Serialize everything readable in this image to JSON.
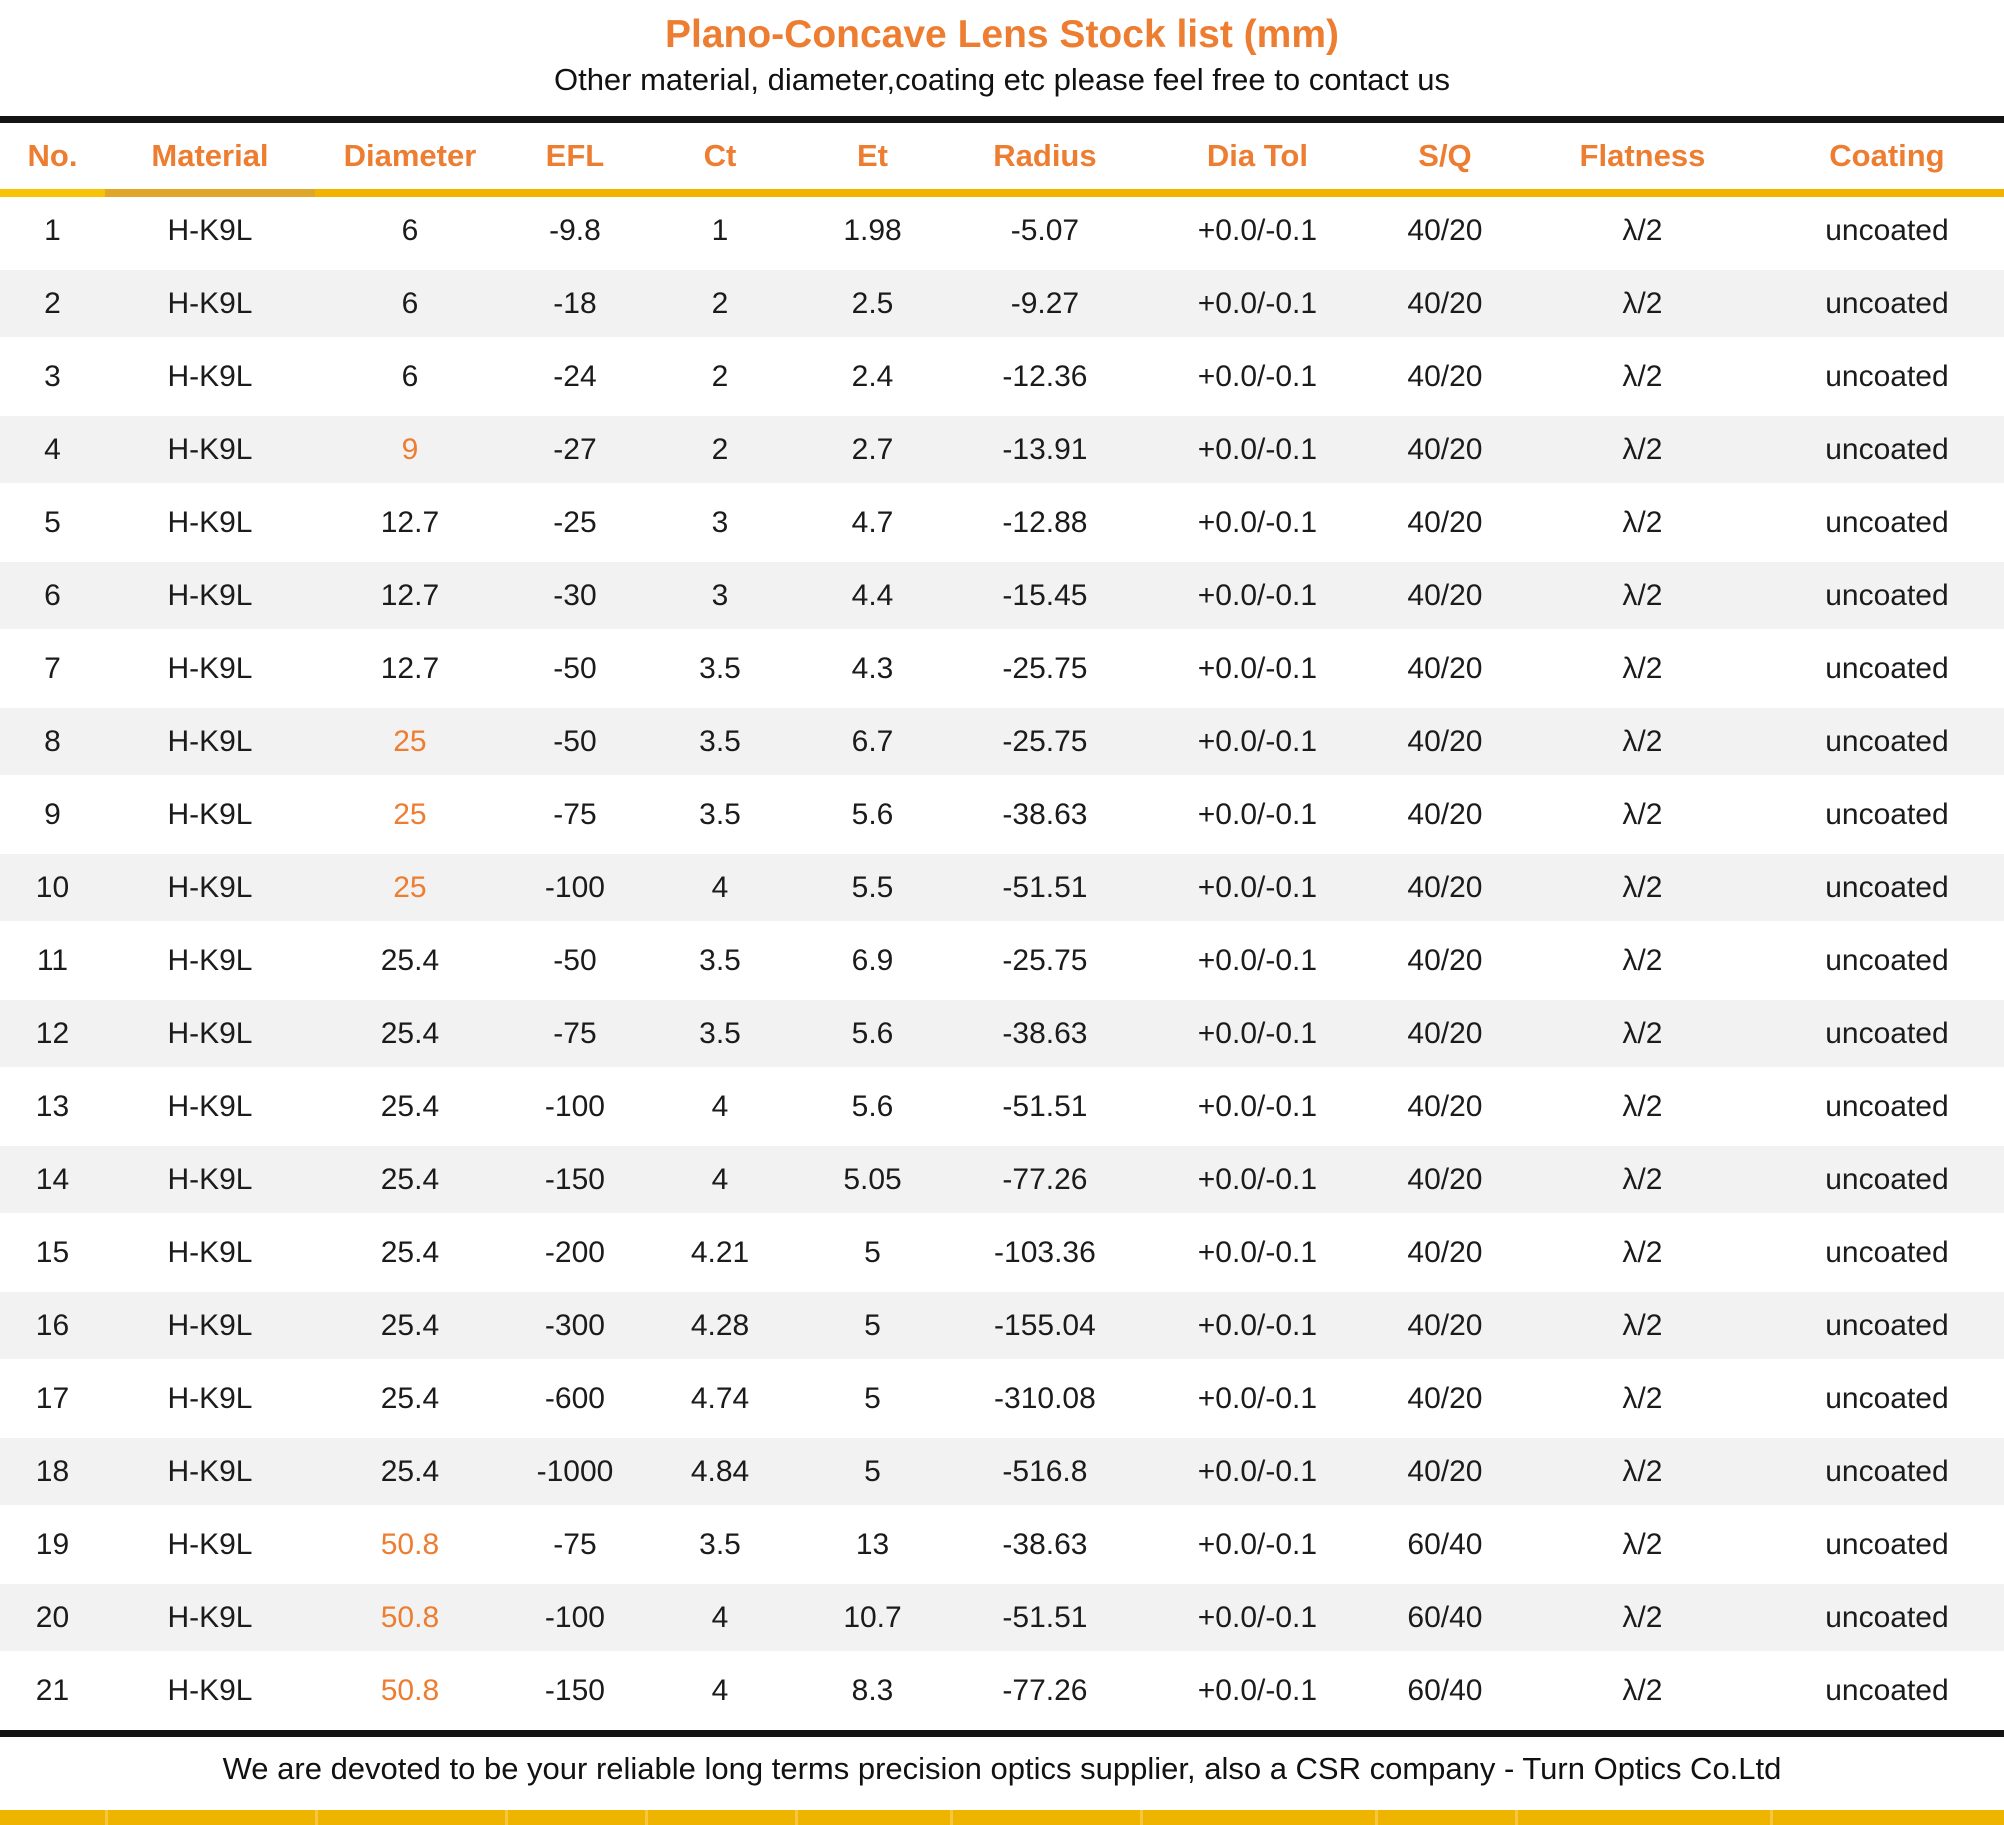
{
  "title": "Plano-Concave Lens Stock list (mm)",
  "subtitle": "Other material, diameter,coating etc please feel free to contact us",
  "footer": "We are devoted to be your reliable long terms precision optics supplier, also a CSR company - Turn Optics Co.Ltd",
  "colors": {
    "accent_orange": "#ED7D31",
    "gold_line": "#F2B300",
    "row_alt_gray": "#F2F2F2",
    "rule_black": "#141414"
  },
  "columns": [
    "No.",
    "Material",
    "Diameter",
    "EFL",
    "Ct",
    "Et",
    "Radius",
    "Dia Tol",
    "S/Q",
    "Flatness",
    "Coating"
  ],
  "rows": [
    {
      "no": "1",
      "material": "H-K9L",
      "diameter": "6",
      "diameter_orange": false,
      "efl": "-9.8",
      "ct": "1",
      "et": "1.98",
      "radius": "-5.07",
      "dia_tol": "+0.0/-0.1",
      "sq": "40/20",
      "flatness": "λ/2",
      "coating": "uncoated"
    },
    {
      "no": "2",
      "material": "H-K9L",
      "diameter": "6",
      "diameter_orange": false,
      "efl": "-18",
      "ct": "2",
      "et": "2.5",
      "radius": "-9.27",
      "dia_tol": "+0.0/-0.1",
      "sq": "40/20",
      "flatness": "λ/2",
      "coating": "uncoated"
    },
    {
      "no": "3",
      "material": "H-K9L",
      "diameter": "6",
      "diameter_orange": false,
      "efl": "-24",
      "ct": "2",
      "et": "2.4",
      "radius": "-12.36",
      "dia_tol": "+0.0/-0.1",
      "sq": "40/20",
      "flatness": "λ/2",
      "coating": "uncoated"
    },
    {
      "no": "4",
      "material": "H-K9L",
      "diameter": "9",
      "diameter_orange": true,
      "efl": "-27",
      "ct": "2",
      "et": "2.7",
      "radius": "-13.91",
      "dia_tol": "+0.0/-0.1",
      "sq": "40/20",
      "flatness": "λ/2",
      "coating": "uncoated"
    },
    {
      "no": "5",
      "material": "H-K9L",
      "diameter": "12.7",
      "diameter_orange": false,
      "efl": "-25",
      "ct": "3",
      "et": "4.7",
      "radius": "-12.88",
      "dia_tol": "+0.0/-0.1",
      "sq": "40/20",
      "flatness": "λ/2",
      "coating": "uncoated"
    },
    {
      "no": "6",
      "material": "H-K9L",
      "diameter": "12.7",
      "diameter_orange": false,
      "efl": "-30",
      "ct": "3",
      "et": "4.4",
      "radius": "-15.45",
      "dia_tol": "+0.0/-0.1",
      "sq": "40/20",
      "flatness": "λ/2",
      "coating": "uncoated"
    },
    {
      "no": "7",
      "material": "H-K9L",
      "diameter": "12.7",
      "diameter_orange": false,
      "efl": "-50",
      "ct": "3.5",
      "et": "4.3",
      "radius": "-25.75",
      "dia_tol": "+0.0/-0.1",
      "sq": "40/20",
      "flatness": "λ/2",
      "coating": "uncoated"
    },
    {
      "no": "8",
      "material": "H-K9L",
      "diameter": "25",
      "diameter_orange": true,
      "efl": "-50",
      "ct": "3.5",
      "et": "6.7",
      "radius": "-25.75",
      "dia_tol": "+0.0/-0.1",
      "sq": "40/20",
      "flatness": "λ/2",
      "coating": "uncoated"
    },
    {
      "no": "9",
      "material": "H-K9L",
      "diameter": "25",
      "diameter_orange": true,
      "efl": "-75",
      "ct": "3.5",
      "et": "5.6",
      "radius": "-38.63",
      "dia_tol": "+0.0/-0.1",
      "sq": "40/20",
      "flatness": "λ/2",
      "coating": "uncoated"
    },
    {
      "no": "10",
      "material": "H-K9L",
      "diameter": "25",
      "diameter_orange": true,
      "efl": "-100",
      "ct": "4",
      "et": "5.5",
      "radius": "-51.51",
      "dia_tol": "+0.0/-0.1",
      "sq": "40/20",
      "flatness": "λ/2",
      "coating": "uncoated"
    },
    {
      "no": "11",
      "material": "H-K9L",
      "diameter": "25.4",
      "diameter_orange": false,
      "efl": "-50",
      "ct": "3.5",
      "et": "6.9",
      "radius": "-25.75",
      "dia_tol": "+0.0/-0.1",
      "sq": "40/20",
      "flatness": "λ/2",
      "coating": "uncoated"
    },
    {
      "no": "12",
      "material": "H-K9L",
      "diameter": "25.4",
      "diameter_orange": false,
      "efl": "-75",
      "ct": "3.5",
      "et": "5.6",
      "radius": "-38.63",
      "dia_tol": "+0.0/-0.1",
      "sq": "40/20",
      "flatness": "λ/2",
      "coating": "uncoated"
    },
    {
      "no": "13",
      "material": "H-K9L",
      "diameter": "25.4",
      "diameter_orange": false,
      "efl": "-100",
      "ct": "4",
      "et": "5.6",
      "radius": "-51.51",
      "dia_tol": "+0.0/-0.1",
      "sq": "40/20",
      "flatness": "λ/2",
      "coating": "uncoated"
    },
    {
      "no": "14",
      "material": "H-K9L",
      "diameter": "25.4",
      "diameter_orange": false,
      "efl": "-150",
      "ct": "4",
      "et": "5.05",
      "radius": "-77.26",
      "dia_tol": "+0.0/-0.1",
      "sq": "40/20",
      "flatness": "λ/2",
      "coating": "uncoated"
    },
    {
      "no": "15",
      "material": "H-K9L",
      "diameter": "25.4",
      "diameter_orange": false,
      "efl": "-200",
      "ct": "4.21",
      "et": "5",
      "radius": "-103.36",
      "dia_tol": "+0.0/-0.1",
      "sq": "40/20",
      "flatness": "λ/2",
      "coating": "uncoated"
    },
    {
      "no": "16",
      "material": "H-K9L",
      "diameter": "25.4",
      "diameter_orange": false,
      "efl": "-300",
      "ct": "4.28",
      "et": "5",
      "radius": "-155.04",
      "dia_tol": "+0.0/-0.1",
      "sq": "40/20",
      "flatness": "λ/2",
      "coating": "uncoated"
    },
    {
      "no": "17",
      "material": "H-K9L",
      "diameter": "25.4",
      "diameter_orange": false,
      "efl": "-600",
      "ct": "4.74",
      "et": "5",
      "radius": "-310.08",
      "dia_tol": "+0.0/-0.1",
      "sq": "40/20",
      "flatness": "λ/2",
      "coating": "uncoated"
    },
    {
      "no": "18",
      "material": "H-K9L",
      "diameter": "25.4",
      "diameter_orange": false,
      "efl": "-1000",
      "ct": "4.84",
      "et": "5",
      "radius": "-516.8",
      "dia_tol": "+0.0/-0.1",
      "sq": "40/20",
      "flatness": "λ/2",
      "coating": "uncoated"
    },
    {
      "no": "19",
      "material": "H-K9L",
      "diameter": "50.8",
      "diameter_orange": true,
      "efl": "-75",
      "ct": "3.5",
      "et": "13",
      "radius": "-38.63",
      "dia_tol": "+0.0/-0.1",
      "sq": "60/40",
      "flatness": "λ/2",
      "coating": "uncoated"
    },
    {
      "no": "20",
      "material": "H-K9L",
      "diameter": "50.8",
      "diameter_orange": true,
      "efl": "-100",
      "ct": "4",
      "et": "10.7",
      "radius": "-51.51",
      "dia_tol": "+0.0/-0.1",
      "sq": "60/40",
      "flatness": "λ/2",
      "coating": "uncoated"
    },
    {
      "no": "21",
      "material": "H-K9L",
      "diameter": "50.8",
      "diameter_orange": true,
      "efl": "-150",
      "ct": "4",
      "et": "8.3",
      "radius": "-77.26",
      "dia_tol": "+0.0/-0.1",
      "sq": "60/40",
      "flatness": "λ/2",
      "coating": "uncoated"
    }
  ]
}
